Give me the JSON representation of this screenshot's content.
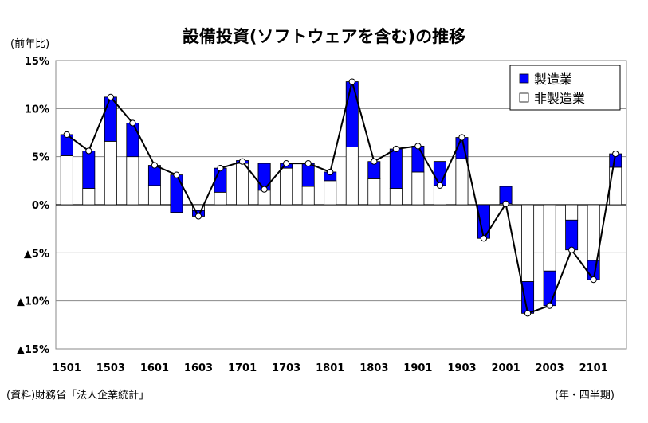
{
  "chart_data": {
    "type": "bar",
    "title": "設備投資(ソフトウェアを含む)の推移",
    "ylabel": "(前年比)",
    "xunit": "(年・四半期)",
    "source": "(資料)財務省「法人企業統計」",
    "ylim": [
      -15,
      15
    ],
    "yticks": [
      15,
      10,
      5,
      0,
      -5,
      -10,
      -15
    ],
    "ytick_labels": [
      "15%",
      "10%",
      "5%",
      "0%",
      "▲5%",
      "▲10%",
      "▲15%"
    ],
    "grid": true,
    "legend_position": "top-right",
    "categories": [
      "1501",
      "1502",
      "1503",
      "1504",
      "1601",
      "1602",
      "1603",
      "1604",
      "1701",
      "1702",
      "1703",
      "1704",
      "1801",
      "1802",
      "1803",
      "1804",
      "1901",
      "1902",
      "1903",
      "1904",
      "2001",
      "2002",
      "2003",
      "2004",
      "2101",
      "2102"
    ],
    "x_tick_labels": [
      "1501",
      "1503",
      "1601",
      "1603",
      "1701",
      "1703",
      "1801",
      "1803",
      "1901",
      "1903",
      "2001",
      "2003",
      "2101"
    ],
    "series": [
      {
        "name": "製造業",
        "kind": "bar",
        "color": "#0000ff",
        "values": [
          2.2,
          3.9,
          4.6,
          3.5,
          2.1,
          3.9,
          -0.6,
          2.5,
          0.3,
          -2.8,
          0.5,
          2.4,
          0.9,
          6.8,
          1.8,
          4.1,
          2.7,
          -2.5,
          2.2,
          -3.5,
          -1.8,
          -3.3,
          -3.6,
          -3.1,
          -2.0,
          1.4
        ]
      },
      {
        "name": "非製造業",
        "kind": "bar",
        "color": "#ffffff",
        "values": [
          5.1,
          1.7,
          6.6,
          5.0,
          2.0,
          -0.8,
          -0.6,
          1.3,
          4.3,
          4.3,
          3.8,
          1.9,
          2.5,
          6.0,
          2.7,
          1.7,
          3.4,
          4.5,
          4.8,
          0.0,
          1.9,
          -8.0,
          -6.9,
          -1.6,
          -5.8,
          3.9
        ]
      },
      {
        "name": "",
        "kind": "line",
        "color": "#000000",
        "values": [
          7.3,
          5.6,
          11.2,
          8.5,
          4.1,
          3.1,
          -1.2,
          3.8,
          4.5,
          1.6,
          4.3,
          4.3,
          3.4,
          12.8,
          4.5,
          5.8,
          6.1,
          2.0,
          7.0,
          -3.5,
          0.1,
          -11.3,
          -10.5,
          -4.7,
          -7.8,
          5.3
        ]
      }
    ]
  }
}
